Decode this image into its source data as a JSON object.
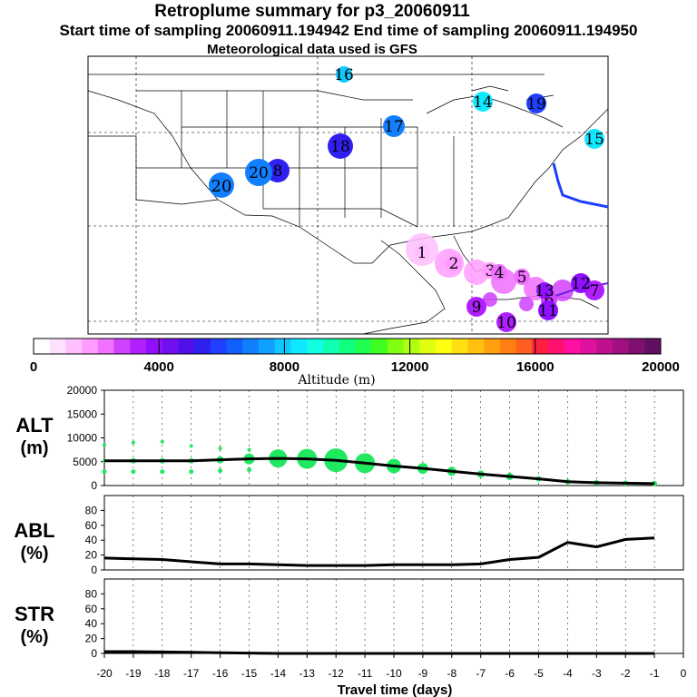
{
  "header": {
    "title": "Retroplume summary for p3_20060911",
    "subtitle": "Start time of sampling 20060911.194942      End time of sampling 20060911.194950",
    "met_line": "Meteorological data used is GFS"
  },
  "map": {
    "markers": [
      {
        "label": "1",
        "alt": 1000
      },
      {
        "label": "2",
        "alt": 1500
      },
      {
        "label": "3",
        "alt": 1800
      },
      {
        "label": "4",
        "alt": 2000
      },
      {
        "label": "5",
        "alt": 2200
      },
      {
        "label": "6",
        "alt": 2600
      },
      {
        "label": "7",
        "alt": 3000
      },
      {
        "label": "8",
        "alt": 5500
      },
      {
        "label": "9",
        "alt": 3200
      },
      {
        "label": "10",
        "alt": 3400
      },
      {
        "label": "11",
        "alt": 3600
      },
      {
        "label": "12",
        "alt": 3700
      },
      {
        "label": "13",
        "alt": 3900
      },
      {
        "label": "14",
        "alt": 8200
      },
      {
        "label": "15",
        "alt": 8400
      },
      {
        "label": "16",
        "alt": 7900
      },
      {
        "label": "17",
        "alt": 6700
      },
      {
        "label": "18",
        "alt": 5300
      },
      {
        "label": "19",
        "alt": 6000
      },
      {
        "label": "20",
        "alt": 6600
      }
    ]
  },
  "colorbar": {
    "ticks": [
      "0",
      "4000",
      "8000",
      "12000",
      "16000",
      "20000"
    ],
    "label": "Altitude (m)",
    "colors": [
      "#ffffff",
      "#ffe0ff",
      "#ffc0ff",
      "#ff9cff",
      "#f070ff",
      "#d040ff",
      "#b020ff",
      "#9010ff",
      "#7010f0",
      "#5010e8",
      "#3020f0",
      "#2040ff",
      "#1060ff",
      "#1080ff",
      "#10a0ff",
      "#10c8ff",
      "#10e8ff",
      "#10ffe0",
      "#10ffb0",
      "#10ff80",
      "#20ff50",
      "#40ff20",
      "#80ff10",
      "#b0ff10",
      "#e0ff10",
      "#ffff10",
      "#ffe010",
      "#ffc010",
      "#ffa010",
      "#ff8010",
      "#ff6020",
      "#ff2040",
      "#ff1070",
      "#ff10a0",
      "#e010a0",
      "#c01090",
      "#a01080",
      "#801070",
      "#601060"
    ]
  },
  "chart_data": [
    {
      "type": "line",
      "title": "ALT (m)",
      "ylabel_line1": "ALT",
      "ylabel_line2": "(m)",
      "x": [
        -20,
        -19,
        -18,
        -17,
        -16,
        -15,
        -14,
        -13,
        -12,
        -11,
        -10,
        -9,
        -8,
        -7,
        -6,
        -5,
        -4,
        -3,
        -2,
        -1
      ],
      "values": [
        5200,
        5200,
        5200,
        5200,
        5400,
        5600,
        5700,
        5600,
        5300,
        4700,
        4100,
        3600,
        3000,
        2400,
        1900,
        1400,
        800,
        600,
        500,
        400
      ],
      "ylim": [
        0,
        20000
      ],
      "yticks": [
        "0",
        "5000",
        "10000",
        "15000",
        "20000"
      ],
      "marker_sizes": [
        2,
        3,
        3,
        3,
        4,
        6,
        10,
        11,
        13,
        11,
        8,
        6,
        5,
        4,
        4,
        3,
        3,
        3,
        3,
        3
      ],
      "spread_alts": [
        8500,
        9000,
        9200,
        8300,
        7800,
        7500
      ],
      "xlim": [
        -20,
        0
      ]
    },
    {
      "type": "line",
      "title": "ABL (%)",
      "ylabel_line1": "ABL",
      "ylabel_line2": "(%)",
      "x": [
        -20,
        -19,
        -18,
        -17,
        -16,
        -15,
        -14,
        -13,
        -12,
        -11,
        -10,
        -9,
        -8,
        -7,
        -6,
        -5,
        -4,
        -3,
        -2,
        -1
      ],
      "values": [
        16,
        15,
        14,
        11,
        8,
        8,
        7,
        6,
        6,
        6,
        7,
        7,
        7,
        8,
        14,
        17,
        37,
        31,
        41,
        43
      ],
      "ylim": [
        0,
        100
      ],
      "yticks": [
        "0",
        "20",
        "40",
        "60",
        "80"
      ],
      "xlim": [
        -20,
        0
      ]
    },
    {
      "type": "line",
      "title": "STR (%)",
      "ylabel_line1": "STR",
      "ylabel_line2": "(%)",
      "x": [
        -20,
        -19,
        -18,
        -17,
        -16,
        -15,
        -14,
        -13,
        -12,
        -11,
        -10,
        -9,
        -8,
        -7,
        -6,
        -5,
        -4,
        -3,
        -2,
        -1
      ],
      "values": [
        2.5,
        2.5,
        2,
        1.5,
        1,
        0.5,
        0,
        0,
        0,
        0,
        0,
        0,
        0,
        0,
        0,
        0,
        0,
        0,
        0,
        0
      ],
      "ylim": [
        0,
        100
      ],
      "yticks": [
        "0",
        "20",
        "40",
        "60",
        "80"
      ],
      "xlim": [
        -20,
        0
      ]
    }
  ],
  "xaxis": {
    "ticks": [
      "-20",
      "-19",
      "-18",
      "-17",
      "-16",
      "-15",
      "-14",
      "-13",
      "-12",
      "-11",
      "-10",
      "-9",
      "-8",
      "-7",
      "-6",
      "-5",
      "-4",
      "-3",
      "-2",
      "-1",
      "0"
    ],
    "label": "Travel time (days)"
  }
}
